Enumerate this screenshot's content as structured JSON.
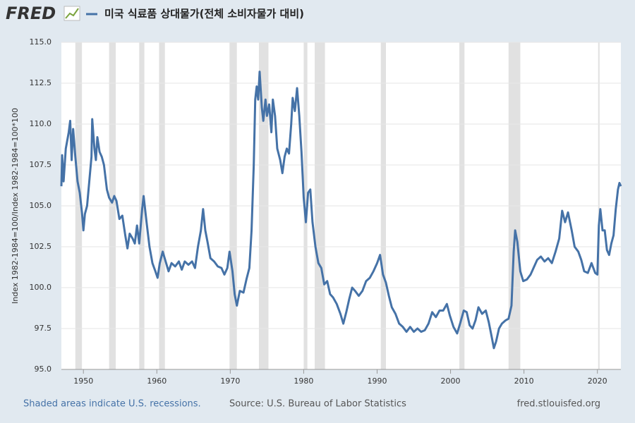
{
  "brand": "FRED",
  "chart_data": {
    "type": "line",
    "y_label": "Index 1982-1984=100/Index 1982-1984=100*100",
    "x": [
      1947.0,
      1947.1,
      1947.3,
      1947.6,
      1948.0,
      1948.2,
      1948.4,
      1948.6,
      1948.9,
      1949.2,
      1949.5,
      1949.8,
      1950.0,
      1950.2,
      1950.5,
      1950.8,
      1951.1,
      1951.2,
      1951.5,
      1951.7,
      1951.9,
      1952.2,
      1952.5,
      1952.8,
      1953.2,
      1953.5,
      1953.9,
      1954.2,
      1954.5,
      1954.9,
      1955.3,
      1955.7,
      1956.0,
      1956.3,
      1956.7,
      1957.0,
      1957.3,
      1957.6,
      1958.0,
      1958.2,
      1958.6,
      1959.0,
      1959.4,
      1959.8,
      1960.1,
      1960.4,
      1960.8,
      1961.2,
      1961.6,
      1962.0,
      1962.5,
      1963.0,
      1963.4,
      1963.8,
      1964.3,
      1964.8,
      1965.2,
      1965.6,
      1966.0,
      1966.3,
      1966.6,
      1966.9,
      1967.3,
      1967.8,
      1968.3,
      1968.8,
      1969.2,
      1969.6,
      1969.9,
      1970.3,
      1970.6,
      1970.9,
      1971.3,
      1971.8,
      1972.2,
      1972.6,
      1972.9,
      1973.2,
      1973.4,
      1973.6,
      1973.8,
      1974.0,
      1974.3,
      1974.5,
      1974.8,
      1975.0,
      1975.3,
      1975.6,
      1975.8,
      1976.1,
      1976.4,
      1976.8,
      1977.1,
      1977.4,
      1977.7,
      1978.0,
      1978.3,
      1978.5,
      1978.8,
      1979.1,
      1979.4,
      1979.7,
      1980.0,
      1980.3,
      1980.6,
      1980.9,
      1981.2,
      1981.6,
      1982.0,
      1982.4,
      1982.8,
      1983.2,
      1983.6,
      1984.0,
      1984.5,
      1985.0,
      1985.4,
      1985.8,
      1986.2,
      1986.6,
      1987.0,
      1987.5,
      1988.0,
      1988.5,
      1989.0,
      1989.5,
      1990.0,
      1990.4,
      1990.8,
      1991.2,
      1991.6,
      1992.0,
      1992.5,
      1993.0,
      1993.5,
      1994.0,
      1994.5,
      1995.0,
      1995.5,
      1996.0,
      1996.5,
      1997.0,
      1997.5,
      1998.0,
      1998.5,
      1999.0,
      1999.5,
      1999.9,
      2000.4,
      2000.9,
      2001.3,
      2001.8,
      2002.2,
      2002.6,
      2003.0,
      2003.4,
      2003.8,
      2004.3,
      2004.8,
      2005.2,
      2005.6,
      2005.9,
      2006.2,
      2006.6,
      2007.0,
      2007.5,
      2007.9,
      2008.3,
      2008.6,
      2008.8,
      2009.1,
      2009.5,
      2009.9,
      2010.4,
      2010.9,
      2011.3,
      2011.8,
      2012.3,
      2012.8,
      2013.3,
      2013.8,
      2014.3,
      2014.8,
      2015.2,
      2015.6,
      2016.0,
      2016.5,
      2016.9,
      2017.4,
      2017.8,
      2018.2,
      2018.7,
      2019.2,
      2019.7,
      2020.0,
      2020.2,
      2020.4,
      2020.7,
      2021.0,
      2021.3,
      2021.6,
      2021.9,
      2022.2,
      2022.5,
      2022.8,
      2023.0,
      2023.2
    ],
    "series": [
      {
        "name": "미국 식료품 상대물가(전체 소비자물가 대비)",
        "color": "#4572a7",
        "values": [
          106.2,
          108.1,
          106.5,
          108.5,
          109.5,
          110.2,
          107.8,
          109.7,
          108.0,
          106.5,
          105.8,
          104.6,
          103.5,
          104.5,
          105.0,
          106.5,
          108.0,
          110.3,
          108.5,
          107.8,
          109.2,
          108.3,
          108.0,
          107.5,
          106.0,
          105.5,
          105.2,
          105.6,
          105.3,
          104.2,
          104.4,
          103.2,
          102.4,
          103.3,
          103.0,
          102.7,
          103.8,
          102.7,
          104.8,
          105.6,
          104.0,
          102.5,
          101.5,
          101.0,
          100.6,
          101.5,
          102.2,
          101.6,
          101.0,
          101.5,
          101.3,
          101.6,
          101.1,
          101.6,
          101.4,
          101.6,
          101.2,
          102.5,
          103.5,
          104.8,
          103.5,
          102.8,
          101.8,
          101.6,
          101.3,
          101.2,
          100.8,
          101.2,
          102.2,
          101.0,
          99.6,
          98.9,
          99.8,
          99.7,
          100.5,
          101.2,
          103.5,
          107.5,
          111.5,
          112.3,
          111.5,
          113.2,
          111.0,
          110.2,
          111.5,
          110.5,
          111.2,
          109.5,
          111.5,
          110.5,
          108.5,
          107.8,
          107.0,
          108.0,
          108.5,
          108.2,
          110.0,
          111.6,
          110.8,
          112.2,
          110.5,
          108.3,
          105.5,
          104.0,
          105.8,
          106.0,
          104.0,
          102.5,
          101.5,
          101.2,
          100.2,
          100.4,
          99.6,
          99.4,
          99.0,
          98.4,
          97.8,
          98.5,
          99.3,
          100.0,
          99.8,
          99.5,
          99.8,
          100.4,
          100.6,
          101.0,
          101.5,
          102.0,
          100.8,
          100.3,
          99.5,
          98.8,
          98.4,
          97.8,
          97.6,
          97.3,
          97.6,
          97.3,
          97.5,
          97.3,
          97.4,
          97.8,
          98.5,
          98.2,
          98.6,
          98.6,
          99.0,
          98.3,
          97.6,
          97.2,
          97.8,
          98.6,
          98.5,
          97.7,
          97.5,
          98.0,
          98.8,
          98.4,
          98.6,
          97.9,
          97.0,
          96.3,
          96.7,
          97.5,
          97.8,
          98.0,
          98.1,
          98.9,
          102.2,
          103.5,
          102.8,
          101.0,
          100.4,
          100.5,
          100.8,
          101.2,
          101.7,
          101.9,
          101.6,
          101.8,
          101.5,
          102.2,
          103.0,
          104.7,
          104.0,
          104.6,
          103.5,
          102.5,
          102.2,
          101.7,
          101.0,
          100.9,
          101.5,
          100.9,
          100.8,
          103.8,
          104.8,
          103.5,
          103.5,
          102.3,
          102.0,
          102.7,
          103.2,
          104.8,
          106.0,
          106.4,
          106.2
        ]
      }
    ],
    "xlim": [
      1947.0,
      2023.2
    ],
    "xticks": [
      1950,
      1960,
      1970,
      1980,
      1990,
      2000,
      2010,
      2020
    ],
    "ylim": [
      95,
      115
    ],
    "yticks": [
      {
        "value": 95,
        "label": "95.0"
      },
      {
        "value": 97.5,
        "label": "97.5"
      },
      {
        "value": 100,
        "label": "100.0"
      },
      {
        "value": 102.5,
        "label": "102.5"
      },
      {
        "value": 105,
        "label": "105.0"
      },
      {
        "value": 107.5,
        "label": "107.5"
      },
      {
        "value": 110,
        "label": "110.0"
      },
      {
        "value": 112.5,
        "label": "112.5"
      },
      {
        "value": 115,
        "label": "115.0"
      }
    ],
    "grid": true,
    "recessions": [
      [
        1948.9,
        1949.8
      ],
      [
        1953.5,
        1954.4
      ],
      [
        1957.6,
        1958.3
      ],
      [
        1960.3,
        1961.1
      ],
      [
        1969.9,
        1970.9
      ],
      [
        1973.9,
        1975.2
      ],
      [
        1980.0,
        1980.5
      ],
      [
        1981.5,
        1982.9
      ],
      [
        1990.5,
        1991.2
      ],
      [
        2001.2,
        2001.9
      ],
      [
        2007.9,
        2009.5
      ],
      [
        2020.1,
        2020.3
      ]
    ],
    "recession_color": "#e1e1e1"
  },
  "footer": {
    "note": "Shaded areas indicate U.S. recessions.",
    "source": "Source: U.S. Bureau of Labor Statistics",
    "site": "fred.stlouisfed.org"
  }
}
